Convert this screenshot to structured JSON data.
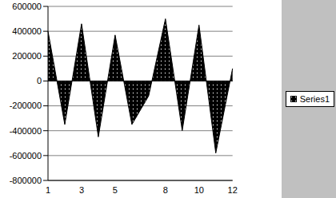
{
  "chart_data": {
    "type": "area",
    "categories": [
      "1",
      null,
      "3",
      null,
      "5",
      null,
      null,
      "8",
      null,
      "10",
      null,
      "12"
    ],
    "series": [
      {
        "name": "Series1",
        "color": "#000000",
        "values": [
          400000,
          -350000,
          460000,
          -450000,
          370000,
          -350000,
          -120000,
          500000,
          -400000,
          450000,
          -580000,
          100000
        ]
      }
    ],
    "ylim": [
      -800000,
      600000
    ],
    "yticks": [
      -800000,
      -600000,
      -400000,
      -200000,
      0,
      200000,
      400000,
      600000
    ],
    "grid": true,
    "legend": "right"
  }
}
